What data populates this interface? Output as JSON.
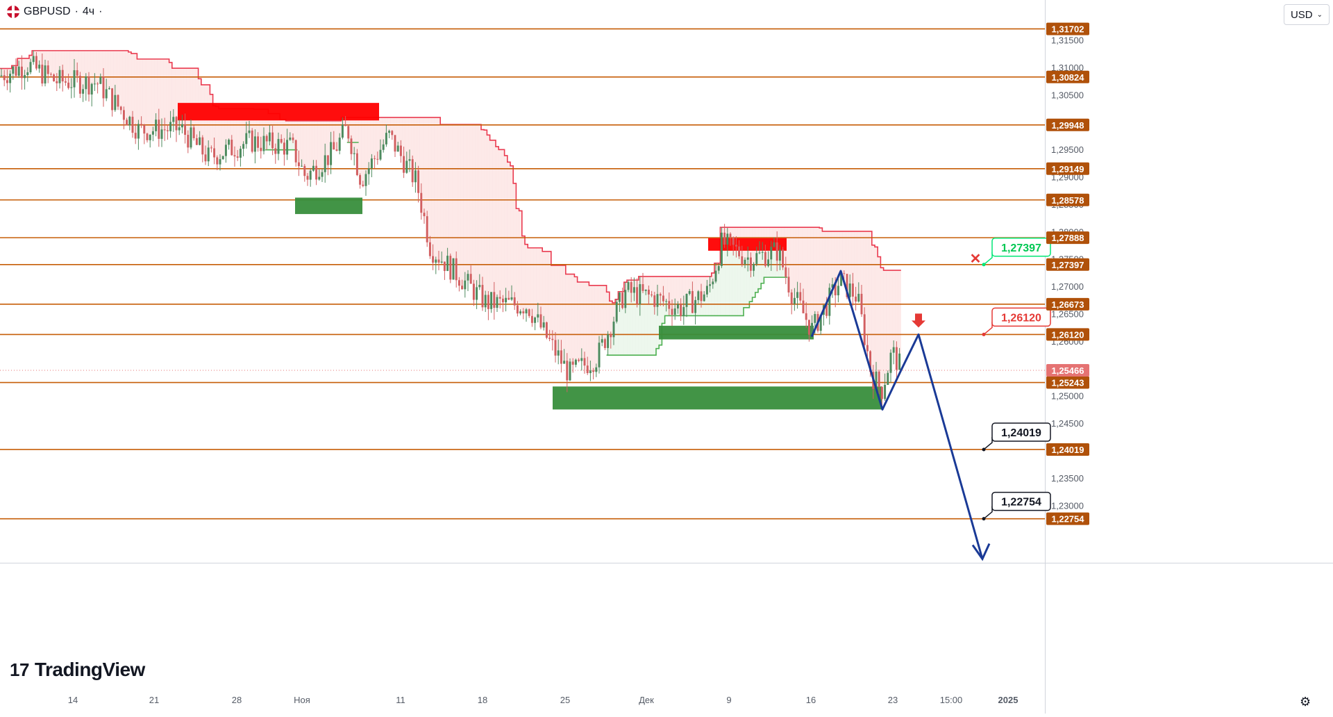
{
  "header": {
    "symbol": "GBPUSD",
    "interval": "4ч",
    "currency": "USD"
  },
  "branding": {
    "logo_text": "TradingView"
  },
  "chart_data": {
    "type": "line",
    "y_min": 1.2195,
    "y_max": 1.3223,
    "y_ticks": [
      "1,31500",
      "1,31000",
      "1,30500",
      "1,30000",
      "1,29500",
      "1,29000",
      "1,28500",
      "1,28000",
      "1,27500",
      "1,27000",
      "1,26500",
      "1,26000",
      "1,25500",
      "1,25000",
      "1,24500",
      "1,24000",
      "1,23500",
      "1,23000"
    ],
    "y_tick_values": [
      1.315,
      1.31,
      1.305,
      1.3,
      1.295,
      1.29,
      1.285,
      1.28,
      1.275,
      1.27,
      1.265,
      1.26,
      1.255,
      1.25,
      1.245,
      1.24,
      1.235,
      1.23
    ],
    "x_ticks": [
      "14",
      "21",
      "28",
      "Ноя",
      "11",
      "18",
      "25",
      "Дек",
      "9",
      "16",
      "23",
      "15:00",
      "2025"
    ],
    "levels": [
      {
        "value": 1.31702,
        "label": "1,31702"
      },
      {
        "value": 1.30824,
        "label": "1,30824"
      },
      {
        "value": 1.29948,
        "label": "1,29948"
      },
      {
        "value": 1.29149,
        "label": "1,29149"
      },
      {
        "value": 1.28578,
        "label": "1,28578"
      },
      {
        "value": 1.27888,
        "label": "1,27888"
      },
      {
        "value": 1.27397,
        "label": "1,27397"
      },
      {
        "value": 1.26673,
        "label": "1,26673"
      },
      {
        "value": 1.2612,
        "label": "1,26120"
      },
      {
        "value": 1.25243,
        "label": "1,25243"
      },
      {
        "value": 1.24019,
        "label": "1,24019"
      },
      {
        "value": 1.22754,
        "label": "1,22754"
      }
    ],
    "current_price": {
      "value": 1.25466,
      "label": "1,25466"
    },
    "callouts": [
      {
        "value": 1.27397,
        "label": "1,27397",
        "style": "cancelled"
      },
      {
        "value": 1.2612,
        "label": "1,26120",
        "style": "entry"
      },
      {
        "value": 1.24019,
        "label": "1,24019",
        "style": "target"
      },
      {
        "value": 1.22754,
        "label": "1,22754",
        "style": "target"
      }
    ],
    "supply_zones": [
      {
        "from": 1.3035,
        "to": 1.3003
      },
      {
        "from": 1.2788,
        "to": 1.2765
      }
    ],
    "demand_zones": [
      {
        "from": 1.2862,
        "to": 1.2832
      },
      {
        "from": 1.2628,
        "to": 1.2603
      },
      {
        "from": 1.2517,
        "to": 1.2475
      }
    ],
    "forecast_path": [
      {
        "date": "Dec 16",
        "value": 1.2608
      },
      {
        "date": "Dec 18",
        "value": 1.2728
      },
      {
        "date": "Dec 23",
        "value": 1.2475
      },
      {
        "date": "Dec 24",
        "value": 1.2547
      },
      {
        "date": "Dec 26",
        "value": 1.2612
      },
      {
        "date": "Dec 31",
        "value": 1.2202
      }
    ],
    "colors": {
      "level_line": "#c65d07",
      "axis_label_bg": "#b0510a",
      "supply": "#ff0000",
      "demand": "#388e3c",
      "forecast": "#1a3a96",
      "bull_candle": "#4d8a5e",
      "bear_candle": "#d25f61",
      "trail_red": "#ea3a4f",
      "trail_green": "#4caf50",
      "current_price": "#e57373"
    }
  }
}
